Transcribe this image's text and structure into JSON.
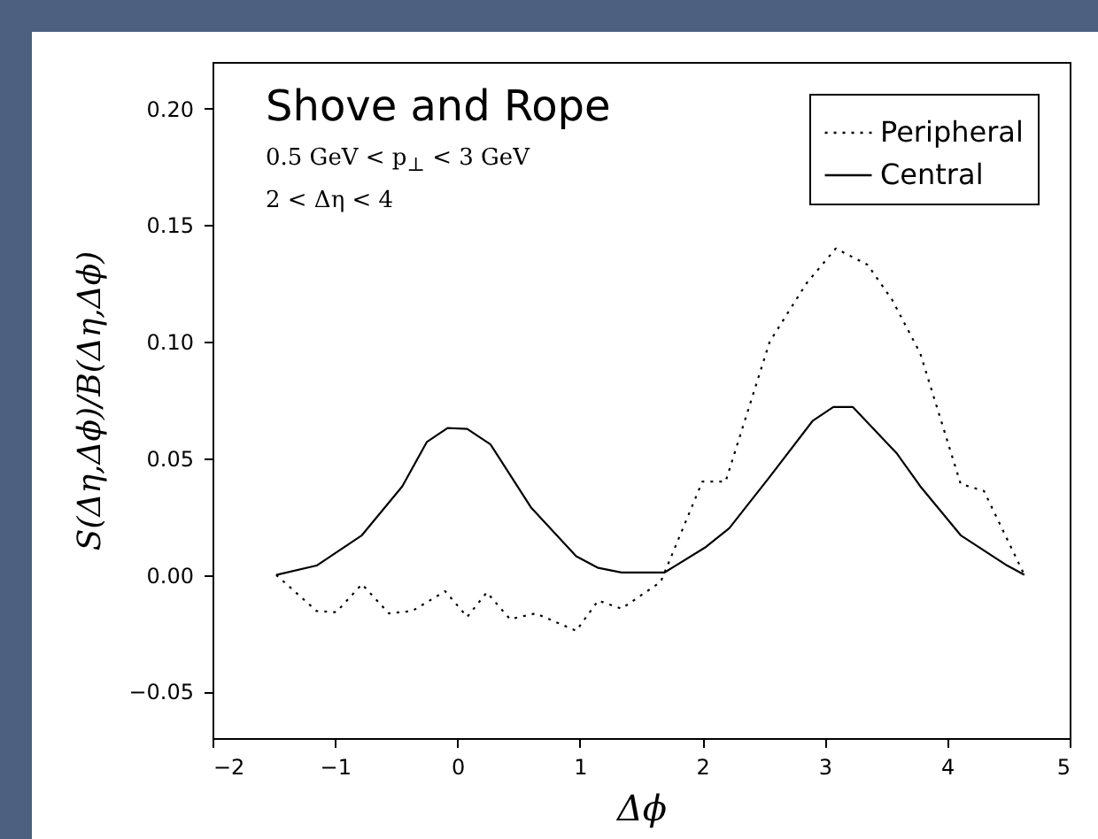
{
  "chart_data": {
    "type": "line",
    "xlabel": "Δϕ",
    "ylabel": "S(Δη,Δϕ)/B(Δη,Δϕ)",
    "annotations": [
      "Shove and Rope",
      "0.5 GeV < p$_{⊥}$ < 3 GeV",
      "2 < Δη < 4"
    ],
    "series": [
      {
        "name": "Peripheral",
        "color": "#000000",
        "line_style": "dotted",
        "x": [
          -1.48,
          -1.15,
          -0.99,
          -0.78,
          -0.56,
          -0.37,
          -0.1,
          0.08,
          0.24,
          0.43,
          0.64,
          0.97,
          1.15,
          1.34,
          1.66,
          2.0,
          2.19,
          2.55,
          2.85,
          3.09,
          3.35,
          3.55,
          3.78,
          4.11,
          4.3,
          4.63
        ],
        "values": [
          0,
          -0.0155,
          -0.016,
          -0.004,
          -0.0165,
          -0.0155,
          -0.007,
          -0.018,
          -0.0075,
          -0.019,
          -0.0165,
          -0.024,
          -0.011,
          -0.0145,
          -0.003,
          0.04,
          0.04,
          0.1,
          0.125,
          0.14,
          0.133,
          0.118,
          0.095,
          0.039,
          0.036,
          0
        ]
      },
      {
        "name": "Central",
        "color": "#000000",
        "line_style": "solid",
        "x": [
          -1.48,
          -1.15,
          -0.78,
          -0.45,
          -0.25,
          -0.08,
          0.08,
          0.27,
          0.6,
          0.97,
          1.15,
          1.34,
          1.69,
          2.03,
          2.22,
          2.55,
          2.9,
          3.07,
          3.23,
          3.59,
          3.78,
          4.11,
          4.49,
          4.63
        ],
        "values": [
          0,
          0.004,
          0.017,
          0.038,
          0.057,
          0.063,
          0.0626,
          0.056,
          0.029,
          0.008,
          0.003,
          0.001,
          0.001,
          0.012,
          0.02,
          0.042,
          0.066,
          0.072,
          0.072,
          0.052,
          0.038,
          0.017,
          0.004,
          0
        ]
      }
    ],
    "xlim": [
      -2,
      5
    ],
    "xticks": [
      -2,
      -1,
      0,
      1,
      2,
      3,
      4,
      5
    ],
    "ylim": [
      -0.07,
      0.22
    ],
    "yticks": [
      {
        "value": -0.05,
        "label": "−0.05"
      },
      {
        "value": 0,
        "label": "0.00"
      },
      {
        "value": 0.05,
        "label": "0.05"
      },
      {
        "value": 0.1,
        "label": "0.10"
      },
      {
        "value": 0.15,
        "label": "0.15"
      },
      {
        "value": 0.2,
        "label": "0.20"
      }
    ],
    "legend": "top right"
  }
}
